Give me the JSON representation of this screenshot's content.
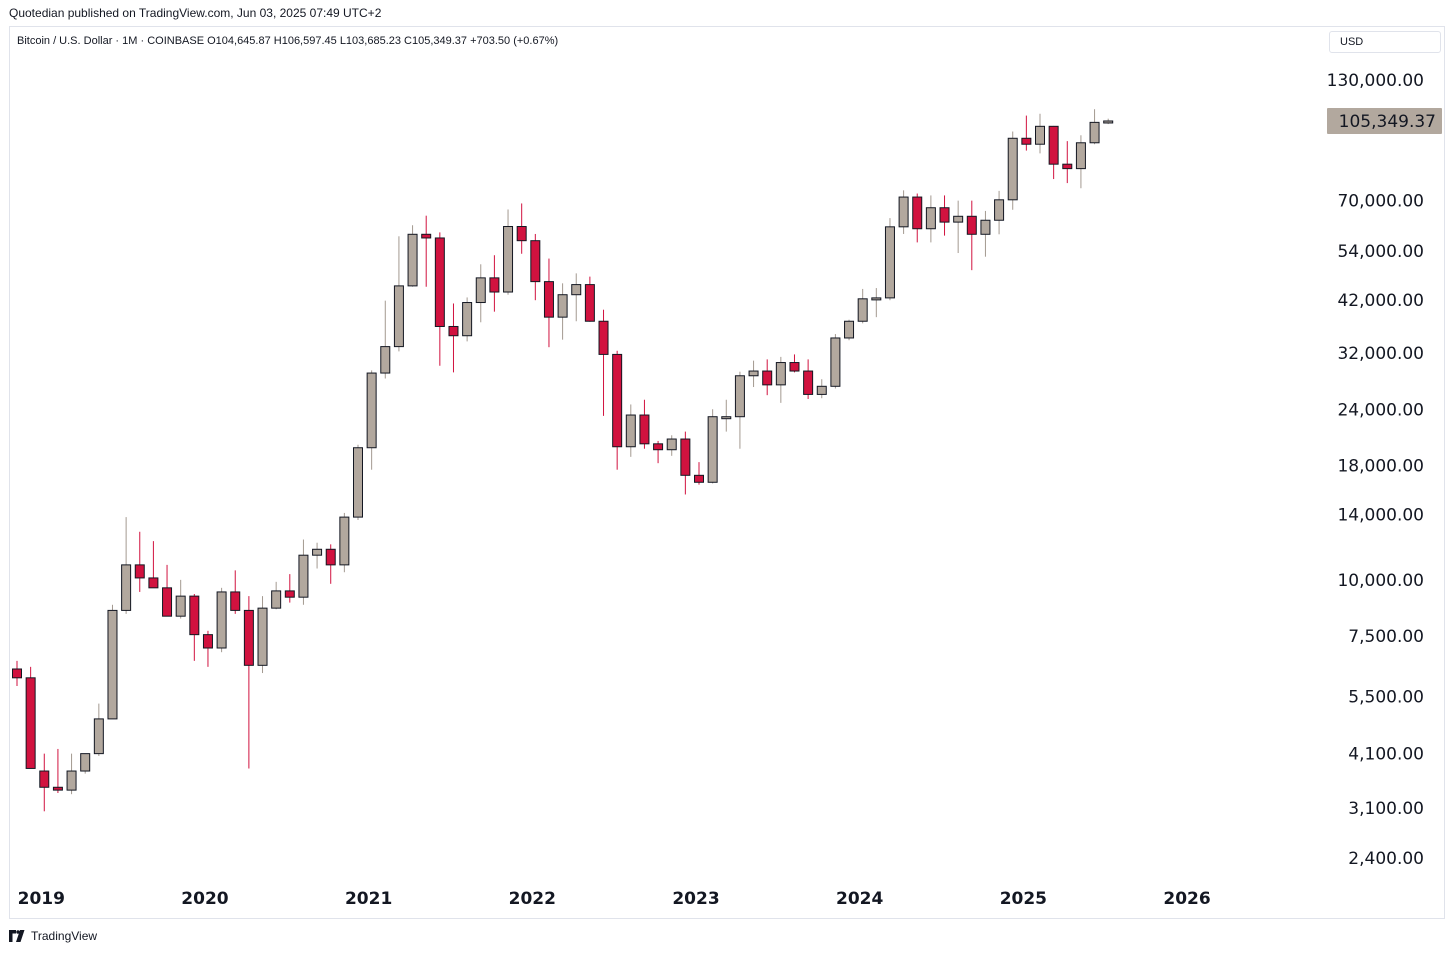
{
  "header": {
    "published": "Quotedian published on TradingView.com, Jun 03, 2025 07:49 UTC+2"
  },
  "legend": {
    "text": "Bitcoin / U.S. Dollar · 1M · COINBASE  O104,645.87  H106,597.45  L103,685.23  C105,349.37  +703.50 (+0.67%)"
  },
  "currency": "USD",
  "footer": {
    "brand": "TradingView"
  },
  "colors": {
    "up": "#b2a89e",
    "down": "#d1123f",
    "wick_up": "#a39990",
    "wick_down": "#d1123f",
    "last_price_bg": "#b2a89e"
  },
  "chart_data": {
    "type": "candlestick",
    "title": "Bitcoin / U.S. Dollar",
    "interval": "1M",
    "exchange": "COINBASE",
    "scale": "log",
    "ylim": [
      2000,
      160000
    ],
    "y_ticks": [
      "130,000.00",
      "70,000.00",
      "54,000.00",
      "42,000.00",
      "32,000.00",
      "24,000.00",
      "18,000.00",
      "14,000.00",
      "10,000.00",
      "7,500.00",
      "5,500.00",
      "4,100.00",
      "3,100.00",
      "2,400.00"
    ],
    "y_tick_values": [
      130000,
      70000,
      54000,
      42000,
      32000,
      24000,
      18000,
      14000,
      10000,
      7500,
      5500,
      4100,
      3100,
      2400
    ],
    "x_ticks": [
      "2019",
      "2020",
      "2021",
      "2022",
      "2023",
      "2024",
      "2025",
      "2026"
    ],
    "x_range": [
      "2018-10",
      "2026-07"
    ],
    "last_price": "105,349.37",
    "last_price_value": 105349.37,
    "candles": [
      {
        "date": "2018-11",
        "open": 6330,
        "high": 6600,
        "low": 5800,
        "close": 6050
      },
      {
        "date": "2018-12",
        "open": 6050,
        "high": 6400,
        "low": 3800,
        "close": 3800
      },
      {
        "date": "2019-01",
        "open": 3750,
        "high": 4100,
        "low": 3050,
        "close": 3450
      },
      {
        "date": "2019-02",
        "open": 3450,
        "high": 4200,
        "low": 3350,
        "close": 3400
      },
      {
        "date": "2019-03",
        "open": 3400,
        "high": 4100,
        "low": 3330,
        "close": 3750
      },
      {
        "date": "2019-04",
        "open": 3750,
        "high": 4100,
        "low": 3700,
        "close": 4100
      },
      {
        "date": "2019-05",
        "open": 4100,
        "high": 5300,
        "low": 4050,
        "close": 4900
      },
      {
        "date": "2019-06",
        "open": 4900,
        "high": 8800,
        "low": 4900,
        "close": 8550
      },
      {
        "date": "2019-07",
        "open": 8550,
        "high": 13800,
        "low": 8400,
        "close": 10800
      },
      {
        "date": "2019-08",
        "open": 10800,
        "high": 12800,
        "low": 9400,
        "close": 10100
      },
      {
        "date": "2019-09",
        "open": 10100,
        "high": 12200,
        "low": 9600,
        "close": 9600
      },
      {
        "date": "2019-10",
        "open": 9600,
        "high": 10800,
        "low": 8300,
        "close": 8300
      },
      {
        "date": "2019-11",
        "open": 8300,
        "high": 10000,
        "low": 8200,
        "close": 9200
      },
      {
        "date": "2019-12",
        "open": 9200,
        "high": 9300,
        "low": 6600,
        "close": 7550
      },
      {
        "date": "2020-01",
        "open": 7550,
        "high": 7700,
        "low": 6400,
        "close": 7050
      },
      {
        "date": "2020-02",
        "open": 7050,
        "high": 9600,
        "low": 6900,
        "close": 9400
      },
      {
        "date": "2020-03",
        "open": 9400,
        "high": 10500,
        "low": 8400,
        "close": 8550
      },
      {
        "date": "2020-04",
        "open": 8550,
        "high": 9200,
        "low": 3800,
        "close": 6450
      },
      {
        "date": "2020-05",
        "open": 6450,
        "high": 9200,
        "low": 6200,
        "close": 8650
      },
      {
        "date": "2020-06",
        "open": 8650,
        "high": 9900,
        "low": 8600,
        "close": 9450
      },
      {
        "date": "2020-07",
        "open": 9450,
        "high": 10300,
        "low": 8900,
        "close": 9150
      },
      {
        "date": "2020-08",
        "open": 9150,
        "high": 12300,
        "low": 8800,
        "close": 11350
      },
      {
        "date": "2020-09",
        "open": 11350,
        "high": 12100,
        "low": 10600,
        "close": 11700
      },
      {
        "date": "2020-10",
        "open": 11700,
        "high": 12000,
        "low": 9800,
        "close": 10800
      },
      {
        "date": "2020-11",
        "open": 10800,
        "high": 14100,
        "low": 10400,
        "close": 13800
      },
      {
        "date": "2020-12",
        "open": 13800,
        "high": 20000,
        "low": 13600,
        "close": 19700
      },
      {
        "date": "2021-01",
        "open": 19700,
        "high": 29300,
        "low": 17600,
        "close": 28900
      },
      {
        "date": "2021-02",
        "open": 28900,
        "high": 41900,
        "low": 28100,
        "close": 33100
      },
      {
        "date": "2021-03",
        "open": 33100,
        "high": 58300,
        "low": 32300,
        "close": 45200
      },
      {
        "date": "2021-04",
        "open": 45200,
        "high": 61700,
        "low": 45000,
        "close": 58900
      },
      {
        "date": "2021-05",
        "open": 58900,
        "high": 64800,
        "low": 45000,
        "close": 57800
      },
      {
        "date": "2021-06",
        "open": 57800,
        "high": 59500,
        "low": 30000,
        "close": 36700
      },
      {
        "date": "2021-07",
        "open": 36700,
        "high": 41300,
        "low": 29000,
        "close": 35000
      },
      {
        "date": "2021-08",
        "open": 35000,
        "high": 42600,
        "low": 34000,
        "close": 41500
      },
      {
        "date": "2021-09",
        "open": 41500,
        "high": 50500,
        "low": 37500,
        "close": 47100
      },
      {
        "date": "2021-10",
        "open": 47100,
        "high": 52900,
        "low": 39600,
        "close": 43800
      },
      {
        "date": "2021-11",
        "open": 43800,
        "high": 66900,
        "low": 43200,
        "close": 61300
      },
      {
        "date": "2021-12",
        "open": 61300,
        "high": 69000,
        "low": 53300,
        "close": 57000
      },
      {
        "date": "2022-01",
        "open": 57000,
        "high": 59000,
        "low": 42000,
        "close": 46200
      },
      {
        "date": "2022-02",
        "open": 46200,
        "high": 52000,
        "low": 33000,
        "close": 38500
      },
      {
        "date": "2022-03",
        "open": 38500,
        "high": 45800,
        "low": 34300,
        "close": 43200
      },
      {
        "date": "2022-04",
        "open": 43200,
        "high": 48200,
        "low": 37700,
        "close": 45500
      },
      {
        "date": "2022-05",
        "open": 45500,
        "high": 47400,
        "low": 37600,
        "close": 37700
      },
      {
        "date": "2022-06",
        "open": 37700,
        "high": 40000,
        "low": 23200,
        "close": 31800
      },
      {
        "date": "2022-07",
        "open": 31800,
        "high": 32400,
        "low": 17600,
        "close": 19800
      },
      {
        "date": "2022-08",
        "open": 19800,
        "high": 24600,
        "low": 18800,
        "close": 23300
      },
      {
        "date": "2022-09",
        "open": 23300,
        "high": 25200,
        "low": 19600,
        "close": 20100
      },
      {
        "date": "2022-10",
        "open": 20100,
        "high": 20400,
        "low": 18200,
        "close": 19500
      },
      {
        "date": "2022-11",
        "open": 19500,
        "high": 21000,
        "low": 18900,
        "close": 20600
      },
      {
        "date": "2022-12",
        "open": 20600,
        "high": 21400,
        "low": 15500,
        "close": 17100
      },
      {
        "date": "2023-01",
        "open": 17100,
        "high": 18300,
        "low": 16300,
        "close": 16500
      },
      {
        "date": "2023-02",
        "open": 16500,
        "high": 24000,
        "low": 16400,
        "close": 23100
      },
      {
        "date": "2023-03",
        "open": 23100,
        "high": 25200,
        "low": 21400,
        "close": 23100
      },
      {
        "date": "2023-04",
        "open": 23100,
        "high": 29100,
        "low": 19600,
        "close": 28500
      },
      {
        "date": "2023-05",
        "open": 28500,
        "high": 30800,
        "low": 26900,
        "close": 29200
      },
      {
        "date": "2023-06",
        "open": 29200,
        "high": 31000,
        "low": 25800,
        "close": 27200
      },
      {
        "date": "2023-07",
        "open": 27200,
        "high": 31400,
        "low": 24800,
        "close": 30500
      },
      {
        "date": "2023-08",
        "open": 30500,
        "high": 31800,
        "low": 29000,
        "close": 29200
      },
      {
        "date": "2023-09",
        "open": 29200,
        "high": 31000,
        "low": 25300,
        "close": 25900
      },
      {
        "date": "2023-10",
        "open": 25900,
        "high": 28000,
        "low": 25400,
        "close": 27000
      },
      {
        "date": "2023-11",
        "open": 27000,
        "high": 35300,
        "low": 26700,
        "close": 34600
      },
      {
        "date": "2023-12",
        "open": 34600,
        "high": 38000,
        "low": 34200,
        "close": 37700
      },
      {
        "date": "2024-01",
        "open": 37700,
        "high": 44500,
        "low": 37300,
        "close": 42300
      },
      {
        "date": "2024-02",
        "open": 42300,
        "high": 44700,
        "low": 38500,
        "close": 42500
      },
      {
        "date": "2024-03",
        "open": 42500,
        "high": 64000,
        "low": 42000,
        "close": 61200
      },
      {
        "date": "2024-04",
        "open": 61200,
        "high": 73800,
        "low": 59000,
        "close": 71300
      },
      {
        "date": "2024-05",
        "open": 71300,
        "high": 72600,
        "low": 56500,
        "close": 60600
      },
      {
        "date": "2024-06",
        "open": 60600,
        "high": 71900,
        "low": 56500,
        "close": 67500
      },
      {
        "date": "2024-07",
        "open": 67500,
        "high": 71900,
        "low": 58500,
        "close": 62700
      },
      {
        "date": "2024-08",
        "open": 62700,
        "high": 70000,
        "low": 53500,
        "close": 64600
      },
      {
        "date": "2024-09",
        "open": 64600,
        "high": 70000,
        "low": 49000,
        "close": 58900
      },
      {
        "date": "2024-10",
        "open": 58900,
        "high": 66400,
        "low": 52500,
        "close": 63300
      },
      {
        "date": "2024-11",
        "open": 63300,
        "high": 73600,
        "low": 58900,
        "close": 70300
      },
      {
        "date": "2024-12",
        "open": 70300,
        "high": 99800,
        "low": 66800,
        "close": 96400
      },
      {
        "date": "2025-01",
        "open": 96400,
        "high": 108300,
        "low": 90500,
        "close": 93500
      },
      {
        "date": "2025-02",
        "open": 93500,
        "high": 109300,
        "low": 89200,
        "close": 102500
      },
      {
        "date": "2025-03",
        "open": 102500,
        "high": 102700,
        "low": 78200,
        "close": 84400
      },
      {
        "date": "2025-04",
        "open": 84400,
        "high": 95000,
        "low": 76600,
        "close": 82500
      },
      {
        "date": "2025-05",
        "open": 82500,
        "high": 97900,
        "low": 74600,
        "close": 94200
      },
      {
        "date": "2025-06",
        "open": 94200,
        "high": 111900,
        "low": 93500,
        "close": 104600
      },
      {
        "date": "2025-07",
        "open": 104645.87,
        "high": 106597.45,
        "low": 103685.23,
        "close": 105349.37
      }
    ]
  }
}
